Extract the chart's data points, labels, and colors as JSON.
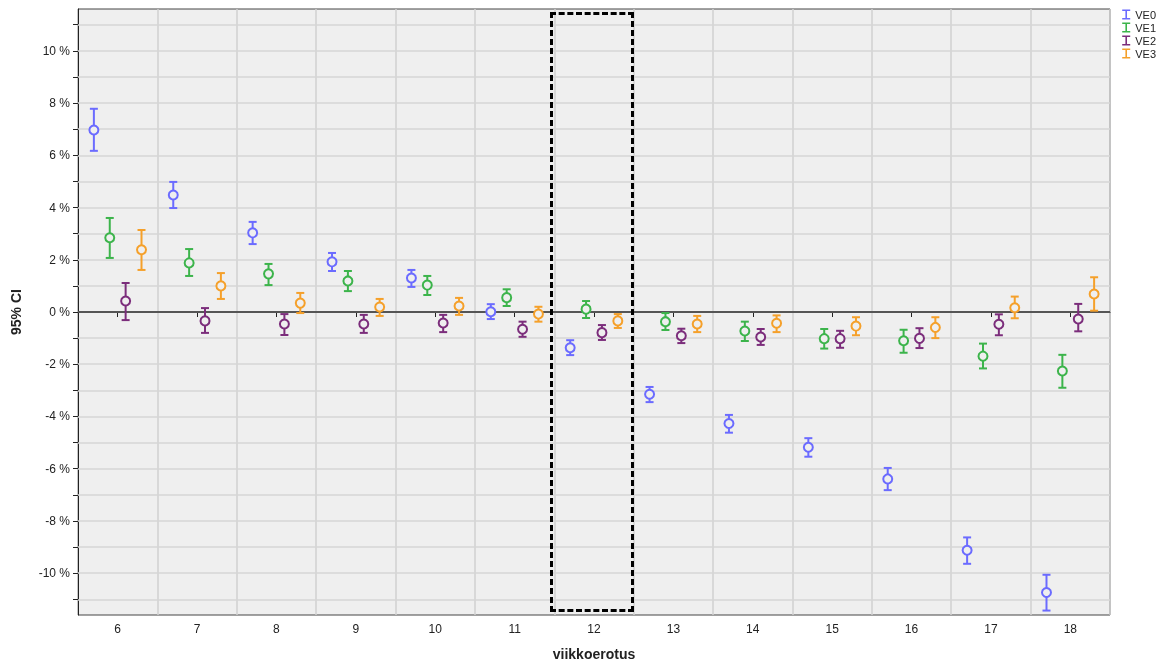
{
  "chart_data": {
    "type": "scatter",
    "xlabel": "viikkoerotus",
    "ylabel": "95% CI",
    "categories": [
      "6",
      "7",
      "8",
      "9",
      "10",
      "11",
      "12",
      "13",
      "14",
      "15",
      "16",
      "17",
      "18"
    ],
    "series": [
      {
        "name": "VE0",
        "color": "#6b6bff",
        "values": [
          6.97,
          4.48,
          3.03,
          1.92,
          1.3,
          0.01,
          -1.37,
          -3.15,
          -4.27,
          -5.18,
          -6.39,
          -9.12,
          -10.74
        ],
        "errors": [
          [
            6.17,
            7.78
          ],
          [
            3.98,
            4.98
          ],
          [
            2.6,
            3.45
          ],
          [
            1.57,
            2.26
          ],
          [
            0.96,
            1.61
          ],
          [
            -0.27,
            0.3
          ],
          [
            -1.65,
            -1.08
          ],
          [
            -3.45,
            -2.87
          ],
          [
            -4.62,
            -3.94
          ],
          [
            -5.54,
            -4.83
          ],
          [
            -6.82,
            -5.97
          ],
          [
            -9.64,
            -8.63
          ],
          [
            -11.43,
            -10.06
          ]
        ]
      },
      {
        "name": "VE1",
        "color": "#3cb44b",
        "values": [
          2.84,
          1.88,
          1.46,
          1.19,
          1.03,
          0.55,
          0.11,
          -0.37,
          -0.73,
          -1.02,
          -1.1,
          -1.69,
          -2.26
        ],
        "errors": [
          [
            2.07,
            3.6
          ],
          [
            1.38,
            2.41
          ],
          [
            1.03,
            1.84
          ],
          [
            0.8,
            1.57
          ],
          [
            0.65,
            1.38
          ],
          [
            0.23,
            0.87
          ],
          [
            -0.23,
            0.42
          ],
          [
            -0.69,
            -0.04
          ],
          [
            -1.11,
            -0.37
          ],
          [
            -1.4,
            -0.65
          ],
          [
            -1.56,
            -0.68
          ],
          [
            -2.16,
            -1.21
          ],
          [
            -2.9,
            -1.64
          ]
        ]
      },
      {
        "name": "VE2",
        "color": "#7b2d7b",
        "values": [
          0.42,
          -0.34,
          -0.46,
          -0.46,
          -0.42,
          -0.66,
          -0.79,
          -0.91,
          -0.96,
          -1.02,
          -1.01,
          -0.47,
          -0.27
        ],
        "errors": [
          [
            -0.31,
            1.11
          ],
          [
            -0.8,
            0.15
          ],
          [
            -0.88,
            -0.08
          ],
          [
            -0.8,
            -0.11
          ],
          [
            -0.77,
            -0.11
          ],
          [
            -0.95,
            -0.37
          ],
          [
            -1.07,
            -0.5
          ],
          [
            -1.19,
            -0.64
          ],
          [
            -1.26,
            -0.65
          ],
          [
            -1.37,
            -0.72
          ],
          [
            -1.38,
            -0.62
          ],
          [
            -0.89,
            -0.09
          ],
          [
            -0.74,
            0.31
          ]
        ]
      },
      {
        "name": "VE3",
        "color": "#f5a02a",
        "values": [
          2.38,
          1.0,
          0.34,
          0.19,
          0.23,
          -0.08,
          -0.34,
          -0.46,
          -0.43,
          -0.54,
          -0.59,
          0.16,
          0.69
        ],
        "errors": [
          [
            1.61,
            3.14
          ],
          [
            0.5,
            1.49
          ],
          [
            -0.04,
            0.73
          ],
          [
            -0.15,
            0.5
          ],
          [
            -0.11,
            0.54
          ],
          [
            -0.37,
            0.2
          ],
          [
            -0.61,
            -0.08
          ],
          [
            -0.77,
            -0.15
          ],
          [
            -0.77,
            -0.13
          ],
          [
            -0.89,
            -0.2
          ],
          [
            -1.0,
            -0.2
          ],
          [
            -0.24,
            0.59
          ],
          [
            0.05,
            1.33
          ]
        ]
      }
    ],
    "ylim": [
      -11.6,
      11.6
    ],
    "yticks": [
      {
        "value": -11,
        "label": null
      },
      {
        "value": -10,
        "label": "-10 %"
      },
      {
        "value": -9,
        "label": null
      },
      {
        "value": -8,
        "label": "-8 %"
      },
      {
        "value": -7,
        "label": null
      },
      {
        "value": -6,
        "label": "-6 %"
      },
      {
        "value": -5,
        "label": null
      },
      {
        "value": -4,
        "label": "-4 %"
      },
      {
        "value": -3,
        "label": null
      },
      {
        "value": -2,
        "label": "-2 %"
      },
      {
        "value": -1,
        "label": null
      },
      {
        "value": 0,
        "label": "0 %"
      },
      {
        "value": 1,
        "label": null
      },
      {
        "value": 2,
        "label": "2 %"
      },
      {
        "value": 3,
        "label": null
      },
      {
        "value": 4,
        "label": "4 %"
      },
      {
        "value": 5,
        "label": null
      },
      {
        "value": 6,
        "label": "6 %"
      },
      {
        "value": 7,
        "label": null
      },
      {
        "value": 8,
        "label": "8 %"
      },
      {
        "value": 9,
        "label": null
      },
      {
        "value": 10,
        "label": "10 %"
      },
      {
        "value": 11,
        "label": null
      }
    ],
    "ref_lines": [
      {
        "axis": "y",
        "value": 0,
        "color": "#555555"
      }
    ],
    "grid": true,
    "legend": "top right",
    "marker": "circle"
  }
}
